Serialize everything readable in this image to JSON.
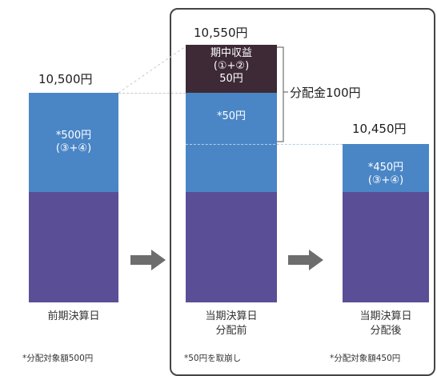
{
  "header": {
    "text": ""
  },
  "bars": {
    "prev": {
      "value_label": "10,500円",
      "segment_text_line1": "*500円",
      "segment_text_line2": "(③+④)",
      "caption": "前期決算日",
      "note": "*分配対象額500円"
    },
    "before": {
      "value_label": "10,550円",
      "profit_line1": "期中収益",
      "profit_line2": "(①+②)",
      "profit_line3": "50円",
      "segment_text": "*50円",
      "caption_line1": "当期決算日",
      "caption_line2": "分配前",
      "note": "*50円を取崩し"
    },
    "after": {
      "value_label": "10,450円",
      "segment_text_line1": "*450円",
      "segment_text_line2": "(③+④)",
      "caption_line1": "当期決算日",
      "caption_line2": "分配後",
      "note": "*分配対象額450円"
    }
  },
  "distribution": {
    "label": "分配金100円"
  },
  "colors": {
    "light_segment": "#4a86c6",
    "dark_segment": "#5a4f96",
    "profit_segment": "#3d2a36",
    "arrow": "#6d6d6d",
    "frame": "#444444"
  }
}
